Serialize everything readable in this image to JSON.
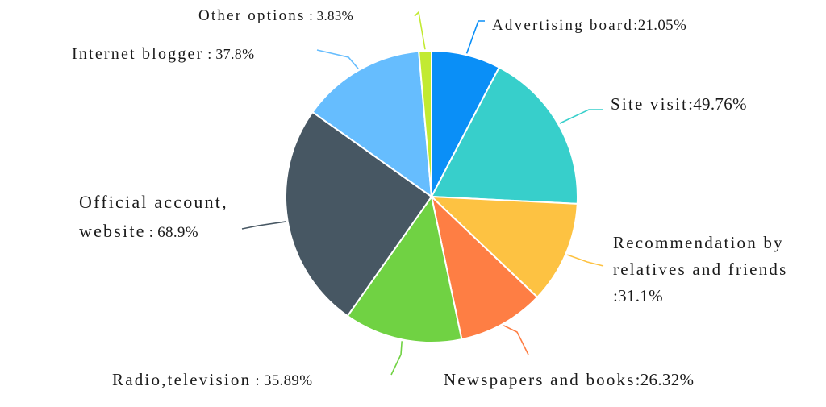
{
  "chart_data": {
    "type": "pie",
    "title": "",
    "slices": [
      {
        "name": "Advertising board",
        "separator": ":",
        "value_label": "21.05%",
        "value": 21.05,
        "color": "#0a8ff7"
      },
      {
        "name": "Site visit",
        "separator": ":",
        "value_label": "49.76%",
        "value": 49.76,
        "color": "#37cfcb"
      },
      {
        "name": "Recommendation by relatives and friends",
        "separator": ":",
        "value_label": "31.1%",
        "value": 31.1,
        "color": "#fdc242"
      },
      {
        "name": "Newspapers and books",
        "separator": ":",
        "value_label": "26.32%",
        "value": 26.32,
        "color": "#fe7e44"
      },
      {
        "name": "Radio,television",
        "separator": ":",
        "value_label": "35.89%",
        "value": 35.89,
        "color": "#70d243"
      },
      {
        "name": "Official account, website",
        "separator": ":",
        "value_label": "68.9%",
        "value": 68.9,
        "color": "#475763"
      },
      {
        "name": "Internet blogger",
        "separator": ":",
        "value_label": "37.8%",
        "value": 37.8,
        "color": "#66bdfe"
      },
      {
        "name": "Other options",
        "separator": ":",
        "value_label": "3.83%",
        "value": 3.83,
        "color": "#c2ea32"
      }
    ],
    "legend": "none"
  }
}
